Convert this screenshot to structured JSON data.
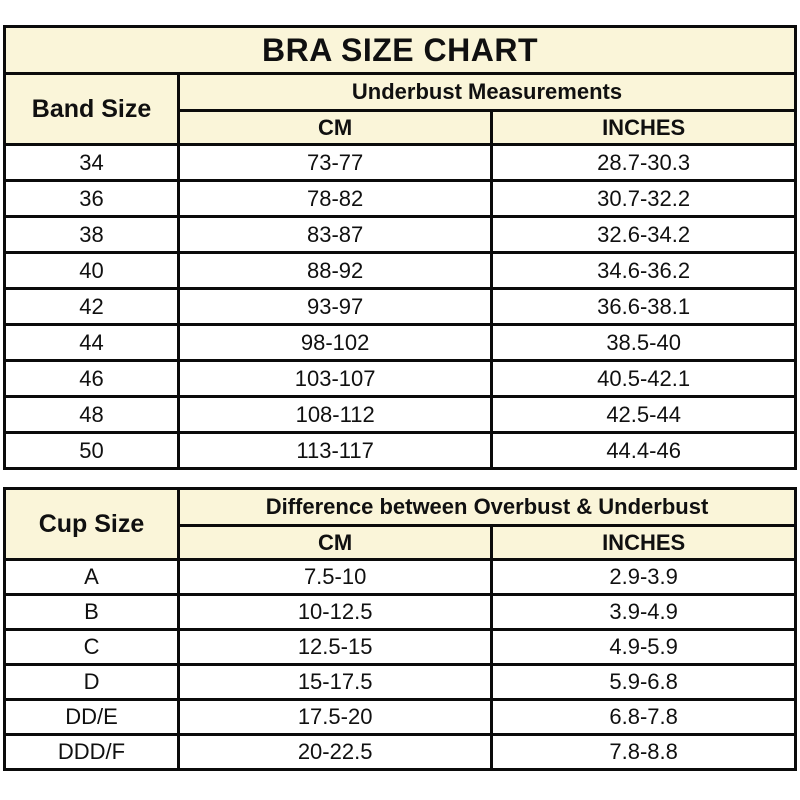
{
  "title": "BRA SIZE CHART",
  "colors": {
    "header_bg": "#faf5d9",
    "row_bg": "#ffffff",
    "border": "#0b0b0b",
    "text": "#101010"
  },
  "band_table": {
    "corner_header": "Band Size",
    "group_header": "Underbust Measurements",
    "sub_headers": {
      "cm": "CM",
      "inches": "INCHES"
    },
    "rows": [
      {
        "size": "34",
        "cm": "73-77",
        "inches": "28.7-30.3"
      },
      {
        "size": "36",
        "cm": "78-82",
        "inches": "30.7-32.2"
      },
      {
        "size": "38",
        "cm": "83-87",
        "inches": "32.6-34.2"
      },
      {
        "size": "40",
        "cm": "88-92",
        "inches": "34.6-36.2"
      },
      {
        "size": "42",
        "cm": "93-97",
        "inches": "36.6-38.1"
      },
      {
        "size": "44",
        "cm": "98-102",
        "inches": "38.5-40"
      },
      {
        "size": "46",
        "cm": "103-107",
        "inches": "40.5-42.1"
      },
      {
        "size": "48",
        "cm": "108-112",
        "inches": "42.5-44"
      },
      {
        "size": "50",
        "cm": "113-117",
        "inches": "44.4-46"
      }
    ]
  },
  "cup_table": {
    "corner_header": "Cup Size",
    "group_header": "Difference between Overbust & Underbust",
    "sub_headers": {
      "cm": "CM",
      "inches": "INCHES"
    },
    "rows": [
      {
        "size": "A",
        "cm": "7.5-10",
        "inches": "2.9-3.9"
      },
      {
        "size": "B",
        "cm": "10-12.5",
        "inches": "3.9-4.9"
      },
      {
        "size": "C",
        "cm": "12.5-15",
        "inches": "4.9-5.9"
      },
      {
        "size": "D",
        "cm": "15-17.5",
        "inches": "5.9-6.8"
      },
      {
        "size": "DD/E",
        "cm": "17.5-20",
        "inches": "6.8-7.8"
      },
      {
        "size": "DDD/F",
        "cm": "20-22.5",
        "inches": "7.8-8.8"
      }
    ]
  }
}
